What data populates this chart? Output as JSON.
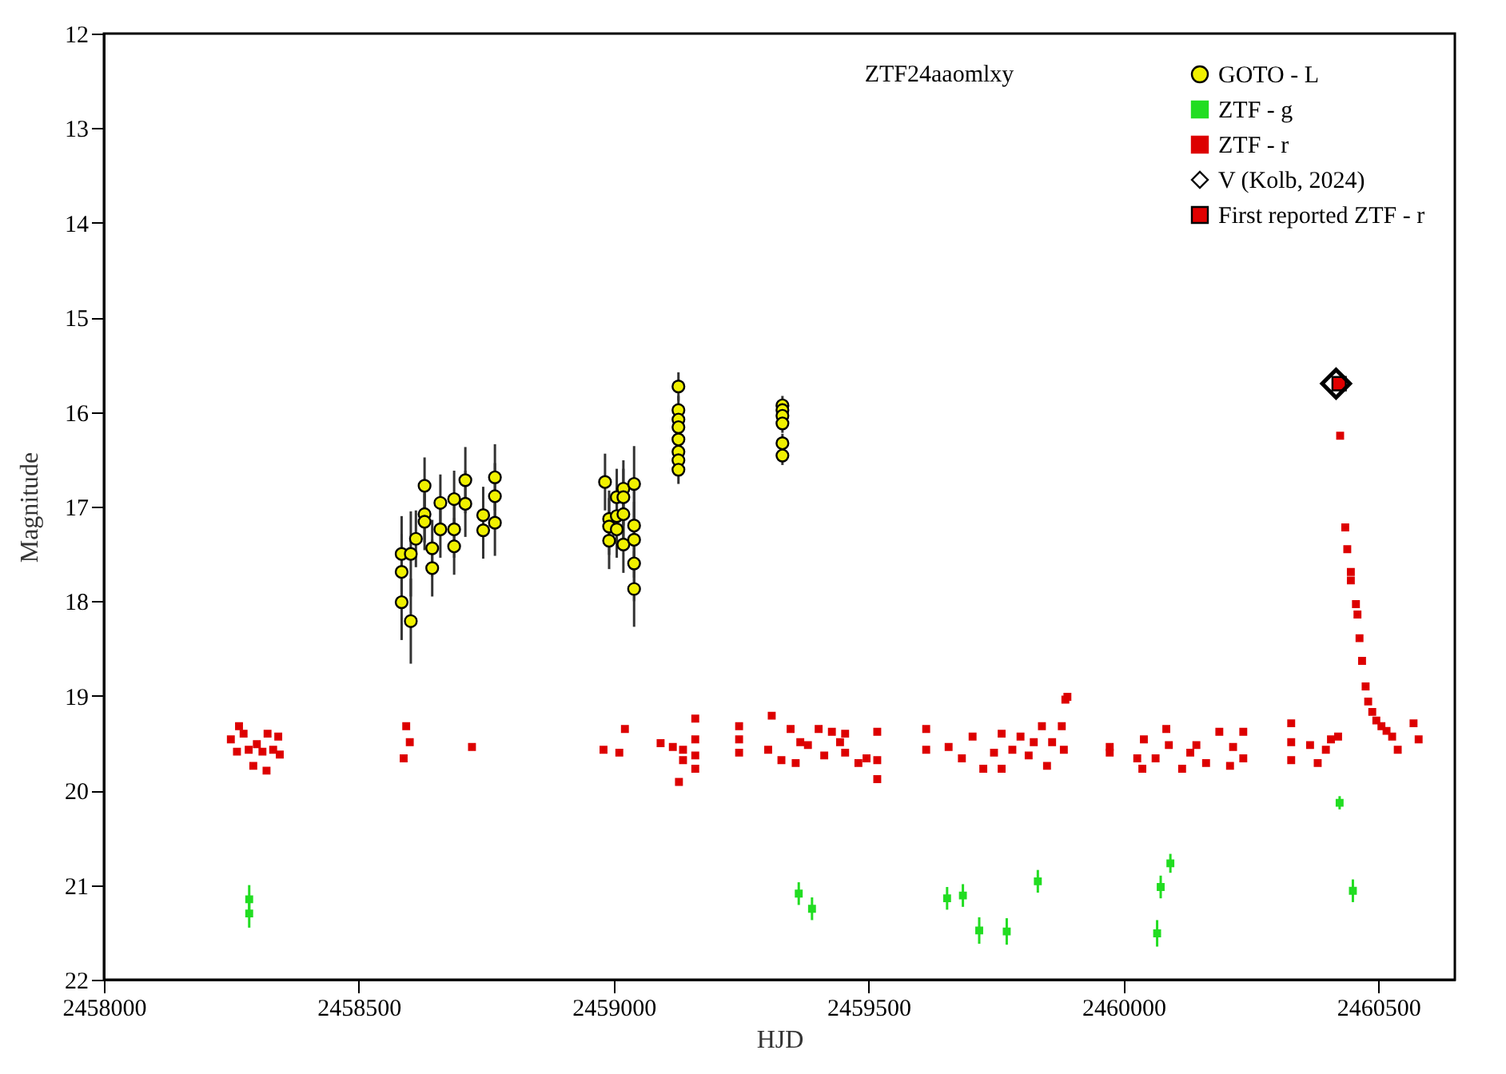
{
  "chart_data": {
    "type": "scatter",
    "title": "ZTF24aaomlxy",
    "xlabel": "HJD",
    "ylabel": "Magnitude",
    "xlim": [
      2458000,
      2460650
    ],
    "xticks": [
      2458000,
      2458500,
      2459000,
      2459500,
      2460000,
      2460500
    ],
    "ylim": [
      22,
      12
    ],
    "yticks": [
      12,
      13,
      14,
      15,
      16,
      17,
      18,
      19,
      20,
      21,
      22
    ],
    "legend": "top right",
    "grid": false,
    "series": [
      {
        "name": "GOTO - L",
        "color": "#f0f000",
        "marker": "circle",
        "x": [
          2458584,
          2458584,
          2458584,
          2458602,
          2458602,
          2458612,
          2458629,
          2458629,
          2458629,
          2458644,
          2458644,
          2458660,
          2458660,
          2458687,
          2458687,
          2458687,
          2458709,
          2458709,
          2458744,
          2458744,
          2458767,
          2458767,
          2458767,
          2458983,
          2458991,
          2458991,
          2458991,
          2459006,
          2459006,
          2459006,
          2459019,
          2459019,
          2459019,
          2459019,
          2459040,
          2459040,
          2459040,
          2459040,
          2459040,
          2459127,
          2459127,
          2459127,
          2459127,
          2459127,
          2459127,
          2459127,
          2459127,
          2459331,
          2459331,
          2459331,
          2459331,
          2459331,
          2459331
        ],
        "values": [
          17.5,
          17.69,
          18.01,
          17.5,
          18.21,
          17.34,
          16.78,
          17.08,
          17.16,
          17.44,
          17.65,
          16.96,
          17.24,
          16.92,
          17.24,
          17.42,
          16.72,
          16.97,
          17.09,
          17.25,
          16.69,
          16.89,
          17.17,
          16.74,
          17.13,
          17.21,
          17.36,
          16.9,
          17.1,
          17.24,
          16.81,
          16.9,
          17.08,
          17.4,
          16.76,
          17.2,
          17.35,
          17.6,
          17.87,
          15.73,
          15.98,
          16.08,
          16.16,
          16.29,
          16.42,
          16.51,
          16.61,
          15.93,
          15.98,
          16.04,
          16.12,
          16.33,
          16.46
        ],
        "errors": [
          0.4,
          0.4,
          0.4,
          0.45,
          0.45,
          0.3,
          0.3,
          0.3,
          0.3,
          0.3,
          0.3,
          0.3,
          0.3,
          0.3,
          0.3,
          0.3,
          0.35,
          0.35,
          0.3,
          0.3,
          0.35,
          0.35,
          0.35,
          0.3,
          0.3,
          0.3,
          0.3,
          0.3,
          0.3,
          0.3,
          0.3,
          0.3,
          0.3,
          0.3,
          0.4,
          0.4,
          0.4,
          0.4,
          0.4,
          0.15,
          0.15,
          0.15,
          0.15,
          0.15,
          0.15,
          0.15,
          0.15,
          0.1,
          0.1,
          0.1,
          0.1,
          0.1,
          0.1
        ]
      },
      {
        "name": "ZTF - g",
        "color": "#22dd22",
        "marker": "square",
        "x": [
          2458285,
          2458285,
          2459363,
          2459389,
          2459654,
          2459685,
          2459717,
          2459771,
          2459832,
          2460066,
          2460073,
          2460092,
          2460424,
          2460450
        ],
        "values": [
          21.15,
          21.3,
          21.09,
          21.25,
          21.14,
          21.11,
          21.48,
          21.49,
          20.96,
          21.51,
          21.02,
          20.77,
          20.13,
          21.06
        ],
        "errors": [
          0.15,
          0.15,
          0.12,
          0.12,
          0.12,
          0.12,
          0.14,
          0.14,
          0.12,
          0.14,
          0.12,
          0.1,
          0.07,
          0.12
        ]
      },
      {
        "name": "ZTF - r",
        "color": "#dd0000",
        "marker": "square",
        "x": [
          2458249,
          2458261,
          2458265,
          2458274,
          2458284,
          2458293,
          2458300,
          2458311,
          2458319,
          2458321,
          2458332,
          2458342,
          2458345,
          2458588,
          2458593,
          2458600,
          2458722,
          2458980,
          2459011,
          2459022,
          2459092,
          2459116,
          2459128,
          2459136,
          2459136,
          2459160,
          2459160,
          2459160,
          2459160,
          2459246,
          2459246,
          2459246,
          2459303,
          2459310,
          2459329,
          2459347,
          2459357,
          2459366,
          2459381,
          2459402,
          2459413,
          2459428,
          2459444,
          2459454,
          2459454,
          2459480,
          2459496,
          2459517,
          2459517,
          2459517,
          2459613,
          2459613,
          2459657,
          2459683,
          2459704,
          2459725,
          2459746,
          2459761,
          2459761,
          2459782,
          2459798,
          2459814,
          2459824,
          2459840,
          2459850,
          2459860,
          2459879,
          2459883,
          2459886,
          2459890,
          2459973,
          2459973,
          2460027,
          2460037,
          2460040,
          2460063,
          2460084,
          2460089,
          2460115,
          2460131,
          2460143,
          2460162,
          2460188,
          2460209,
          2460215,
          2460235,
          2460235,
          2460329,
          2460329,
          2460329,
          2460366,
          2460381,
          2460397,
          2460407,
          2460421,
          2460425,
          2460435,
          2460439,
          2460446,
          2460446,
          2460456,
          2460459,
          2460463,
          2460468,
          2460475,
          2460480,
          2460488,
          2460496,
          2460506,
          2460516,
          2460527,
          2460538,
          2460569,
          2460579
        ],
        "values": [
          19.46,
          19.59,
          19.32,
          19.4,
          19.57,
          19.74,
          19.51,
          19.59,
          19.79,
          19.4,
          19.57,
          19.43,
          19.62,
          19.66,
          19.32,
          19.49,
          19.54,
          19.57,
          19.6,
          19.35,
          19.5,
          19.54,
          19.91,
          19.57,
          19.68,
          19.24,
          19.46,
          19.63,
          19.77,
          19.32,
          19.46,
          19.6,
          19.57,
          19.21,
          19.68,
          19.35,
          19.71,
          19.49,
          19.52,
          19.35,
          19.63,
          19.38,
          19.49,
          19.6,
          19.4,
          19.71,
          19.66,
          19.38,
          19.68,
          19.88,
          19.35,
          19.57,
          19.54,
          19.66,
          19.43,
          19.77,
          19.6,
          19.4,
          19.77,
          19.57,
          19.43,
          19.63,
          19.49,
          19.32,
          19.74,
          19.49,
          19.32,
          19.57,
          19.04,
          19.01,
          19.54,
          19.6,
          19.66,
          19.77,
          19.46,
          19.66,
          19.35,
          19.52,
          19.77,
          19.6,
          19.52,
          19.71,
          19.38,
          19.74,
          19.54,
          19.38,
          19.66,
          19.29,
          19.49,
          19.68,
          19.52,
          19.71,
          19.57,
          19.46,
          19.43,
          16.25,
          17.22,
          17.45,
          17.69,
          17.78,
          18.03,
          18.14,
          18.39,
          18.63,
          18.9,
          19.06,
          19.17,
          19.26,
          19.32,
          19.37,
          19.43,
          19.57,
          19.29,
          19.46
        ]
      },
      {
        "name": "V (Kolb, 2024)",
        "color": "#000000",
        "marker": "diamond",
        "x": [
          2460417
        ],
        "values": [
          15.7
        ]
      },
      {
        "name": "First reported ZTF - r",
        "color": "#e00000",
        "marker": "square",
        "x": [
          2460423
        ],
        "values": [
          15.7
        ]
      }
    ]
  }
}
